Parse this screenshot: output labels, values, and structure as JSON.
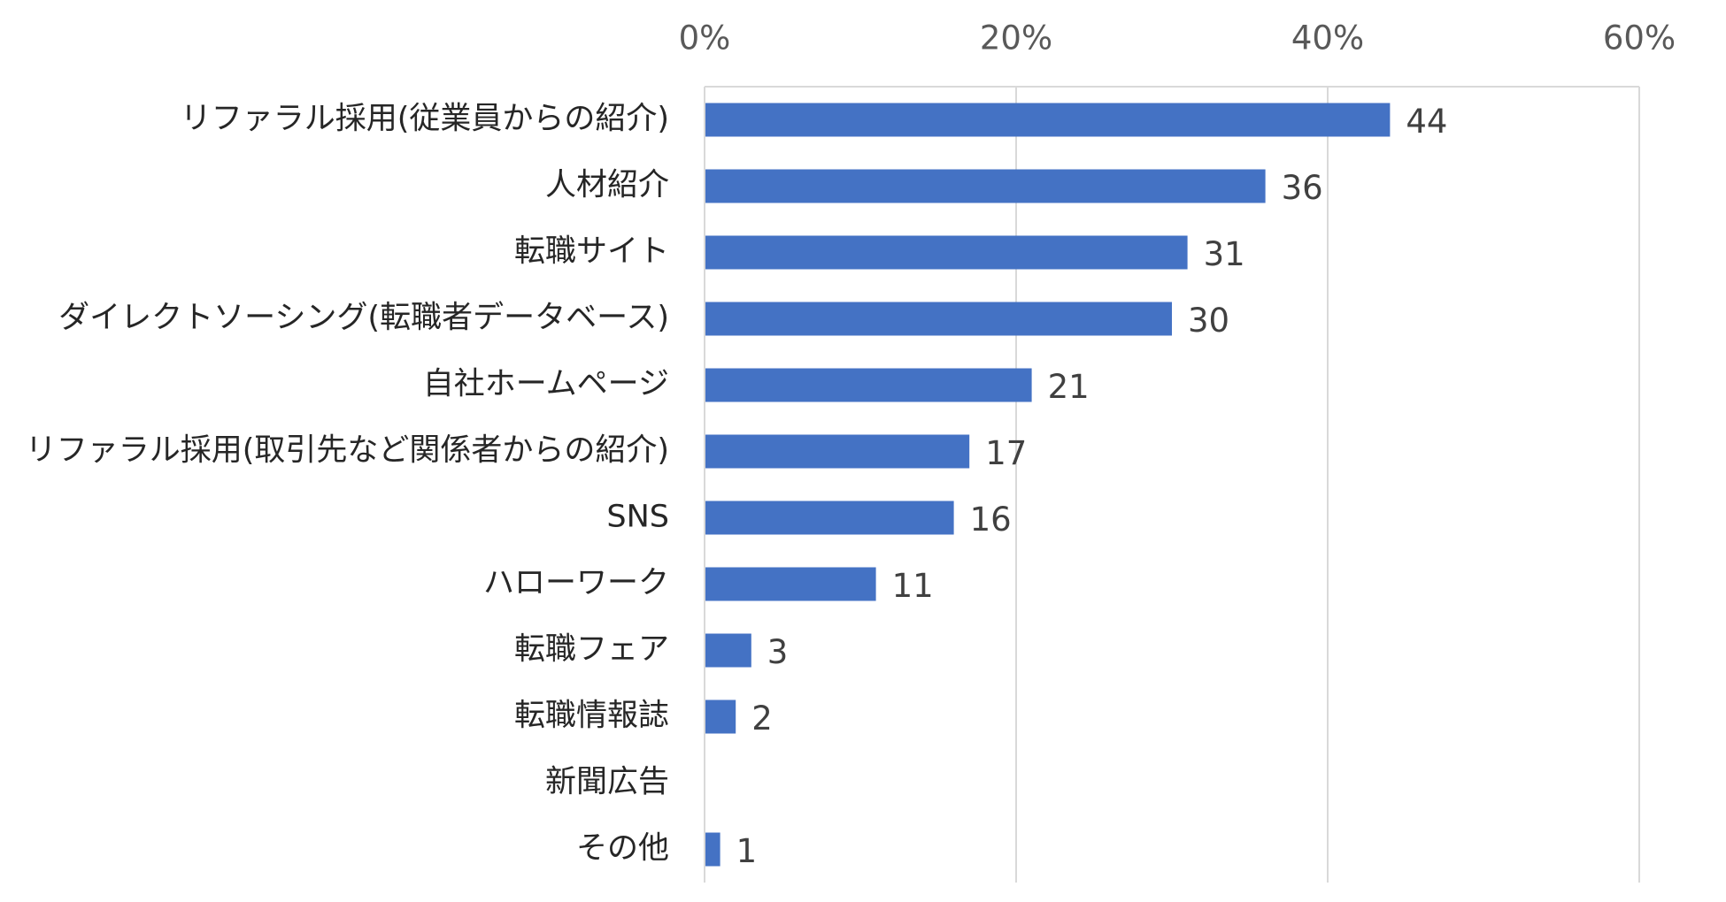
{
  "chart_data": {
    "type": "bar",
    "orientation": "horizontal",
    "categories": [
      "リファラル採用(従業員からの紹介)",
      "人材紹介",
      "転職サイト",
      "ダイレクトソーシング(転職者データベース)",
      "自社ホームページ",
      "リファラル採用(取引先など関係者からの紹介)",
      "SNS",
      "ハローワーク",
      "転職フェア",
      "転職情報誌",
      "新聞広告",
      "その他"
    ],
    "values": [
      44,
      36,
      31,
      30,
      21,
      17,
      16,
      11,
      3,
      2,
      0,
      1
    ],
    "data_labels": [
      "44",
      "36",
      "31",
      "30",
      "21",
      "17",
      "16",
      "11",
      "3",
      "2",
      "",
      "1"
    ],
    "xlim": [
      0,
      60
    ],
    "x_ticks": [
      0,
      20,
      40,
      60
    ],
    "x_tick_labels": [
      "0%",
      "20%",
      "40%",
      "60%"
    ],
    "x_axis_position": "top",
    "grid": true,
    "bar_color": "#4472C4",
    "legend": "none"
  }
}
